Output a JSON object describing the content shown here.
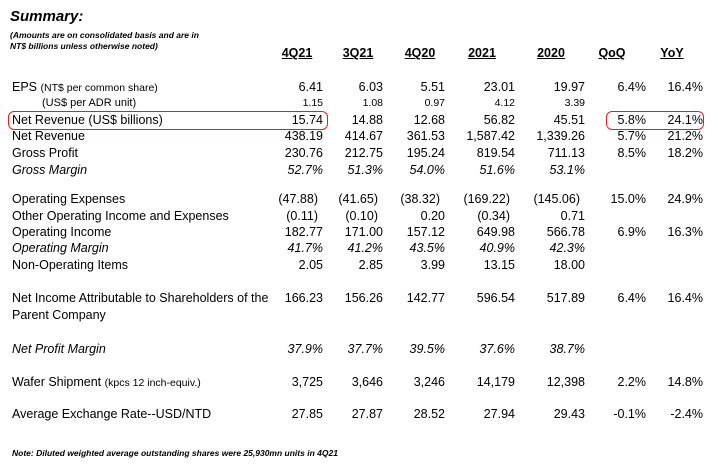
{
  "header": {
    "title": "Summary:",
    "subtitle": [
      "(Amounts are on consolidated basis and are in",
      "NT$ billions unless otherwise noted)"
    ],
    "columns": [
      "4Q21",
      "3Q21",
      "4Q20",
      "2021",
      "2020",
      "QoQ",
      "YoY"
    ]
  },
  "table": {
    "rows": [
      {
        "label": "EPS",
        "note": "(NT$ per common share)",
        "values": [
          "6.41",
          "6.03",
          "5.51",
          "23.01",
          "19.97",
          "6.4%",
          "16.4%"
        ]
      },
      {
        "label": "(US$ per ADR unit)",
        "values": [
          "1.15",
          "1.08",
          "0.97",
          "4.12",
          "3.39",
          null,
          null
        ]
      },
      {
        "label": "Net Revenue (US$ billions)",
        "values": [
          "15.74",
          "14.88",
          "12.68",
          "56.82",
          "45.51",
          "5.8%",
          "24.1%"
        ]
      },
      {
        "label": "Net Revenue",
        "values": [
          "438.19",
          "414.67",
          "361.53",
          "1,587.42",
          "1,339.26",
          "5.7%",
          "21.2%"
        ]
      },
      {
        "label": "Gross Profit",
        "values": [
          "230.76",
          "212.75",
          "195.24",
          "819.54",
          "711.13",
          "8.5%",
          "18.2%"
        ]
      },
      {
        "label": "Gross Margin",
        "values": [
          "52.7%",
          "51.3%",
          "54.0%",
          "51.6%",
          "53.1%",
          null,
          null
        ]
      },
      {
        "label": "Operating Expenses",
        "values": [
          "(47.88)",
          "(41.65)",
          "(38.32)",
          "(169.22)",
          "(145.06)",
          "15.0%",
          "24.9%"
        ]
      },
      {
        "label": "Other Operating Income and Expenses",
        "values": [
          "(0.11)",
          "(0.10)",
          "0.20",
          "(0.34)",
          "0.71",
          null,
          null
        ]
      },
      {
        "label": "Operating Income",
        "values": [
          "182.77",
          "171.00",
          "157.12",
          "649.98",
          "566.78",
          "6.9%",
          "16.3%"
        ]
      },
      {
        "label": "Operating Margin",
        "values": [
          "41.7%",
          "41.2%",
          "43.5%",
          "40.9%",
          "42.3%",
          null,
          null
        ]
      },
      {
        "label": "Non-Operating Items",
        "values": [
          "2.05",
          "2.85",
          "3.99",
          "13.15",
          "18.00",
          null,
          null
        ]
      },
      {
        "label": "Net Income Attributable to Shareholders of the Parent Company",
        "values": [
          "166.23",
          "156.26",
          "142.77",
          "596.54",
          "517.89",
          "6.4%",
          "16.4%"
        ]
      },
      {
        "label": "Net Profit Margin",
        "values": [
          "37.9%",
          "37.7%",
          "39.5%",
          "37.6%",
          "38.7%",
          null,
          null
        ]
      },
      {
        "label": "Wafer Shipment",
        "note": "(kpcs 12 inch-equiv.)",
        "values": [
          "3,725",
          "3,646",
          "3,246",
          "14,179",
          "12,398",
          "2.2%",
          "14.8%"
        ]
      },
      {
        "label": "Average Exchange Rate--USD/NTD",
        "values": [
          "27.85",
          "27.87",
          "28.52",
          "27.94",
          "29.43",
          "-0.1%",
          "-2.4%"
        ]
      }
    ]
  },
  "footer": {
    "note": "Note: Diluted weighted average outstanding shares were 25,930mn units in 4Q21"
  }
}
